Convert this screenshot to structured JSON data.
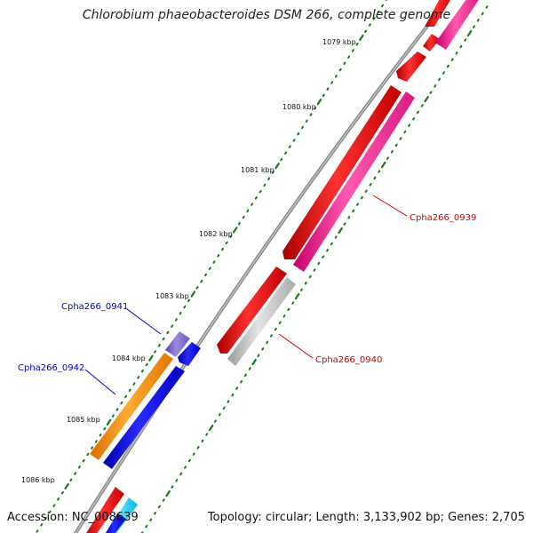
{
  "title": "Chlorobium phaeobacteroides DSM 266, complete genome",
  "footer": {
    "accession": "Accession: NC_008639",
    "summary": "Topology: circular; Length: 3,133,902 bp; Genes: 2,705"
  },
  "ticks": [
    "1079 kbp",
    "1080 kbp",
    "1081 kbp",
    "1082 kbp",
    "1083 kbp",
    "1084 kbp",
    "1085 kbp",
    "1086 kbp"
  ],
  "genes": [
    {
      "name": "Cpha266_0939",
      "color": "#cc0000"
    },
    {
      "name": "Cpha266_0940",
      "color": "#cc0000"
    },
    {
      "name": "Cpha266_0941",
      "color": "#0000cc"
    },
    {
      "name": "Cpha266_0942",
      "color": "#0000cc"
    }
  ],
  "colors": {
    "backbone": "#888888",
    "tick_green": "#1a7a1a",
    "red": "#ee0000",
    "pink": "#ff2a95",
    "grey": "#c8c8c8",
    "orange": "#ff8c00",
    "blue": "#0000e6",
    "violet": "#7b68c8",
    "cyan": "#00ccee"
  }
}
